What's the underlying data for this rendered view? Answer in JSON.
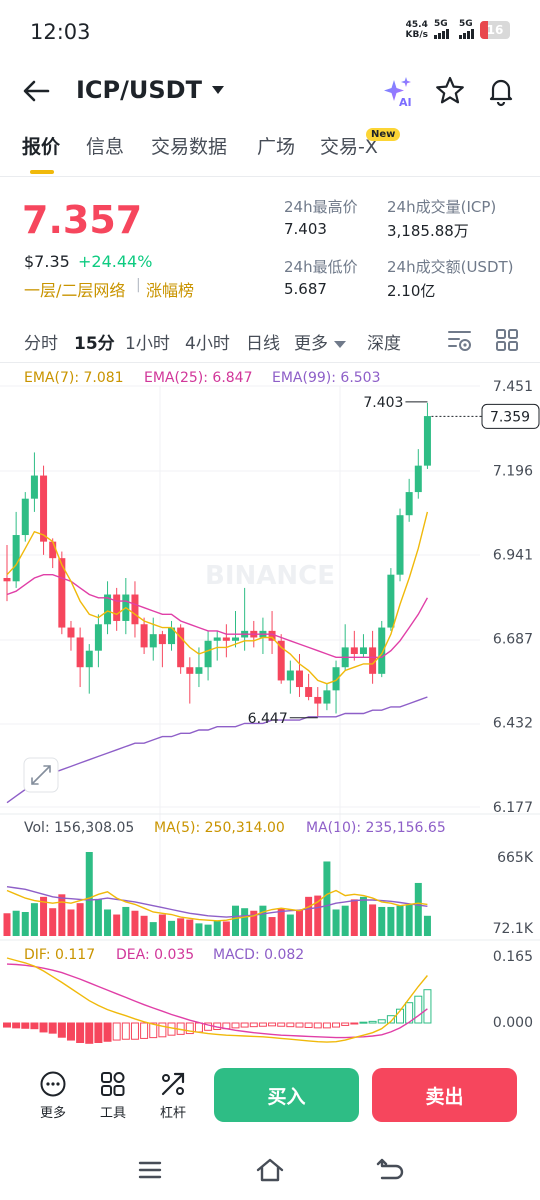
{
  "status": {
    "time": "12:03",
    "net_speed": "45.4",
    "net_unit": "KB/s",
    "sim1": "5G",
    "sim2": "5G",
    "battery": "16"
  },
  "header": {
    "title": "ICP/USDT",
    "ai_label": "AI"
  },
  "tabs": [
    {
      "label": "报价"
    },
    {
      "label": "信息"
    },
    {
      "label": "交易数据"
    },
    {
      "label": "广场"
    },
    {
      "label": "交易-X"
    }
  ],
  "new_badge": "New",
  "price": {
    "last": "7.357",
    "usd": "$7.35",
    "change": "+24.44%",
    "network_link": "一层/二层网络",
    "rank_link": "涨幅榜",
    "stats": [
      {
        "label": "24h最高价",
        "value": "7.403"
      },
      {
        "label": "24h成交量(ICP)",
        "value": "3,185.88万"
      },
      {
        "label": "24h最低价",
        "value": "5.687"
      },
      {
        "label": "24h成交额(USDT)",
        "value": "2.10亿"
      }
    ]
  },
  "intervals": {
    "items": [
      "分时",
      "15分",
      "1小时",
      "4小时",
      "日线"
    ],
    "more": "更多",
    "depth": "深度"
  },
  "indicators": {
    "ema7": "EMA(7): 7.081",
    "ema25": "EMA(25): 6.847",
    "ema99": "EMA(99): 6.503",
    "vol": "Vol: 156,308.05",
    "ma5": "MA(5): 250,314.00",
    "ma10": "MA(10): 235,156.65",
    "dif": "DIF: 0.117",
    "dea": "DEA: 0.035",
    "macd": "MACD: 0.082"
  },
  "colors": {
    "up": "#2ebd85",
    "down": "#f6465d",
    "ema7": "#f0b90b",
    "ema25": "#e03fa7",
    "ema99": "#8e5fc8"
  },
  "chart_data": {
    "type": "candlestick",
    "watermark": "BINANCE",
    "price_axis": [
      "7.451",
      "7.196",
      "6.941",
      "6.687",
      "6.432",
      "6.177"
    ],
    "ylim": [
      6.177,
      7.451
    ],
    "current_price": "7.359",
    "high_marker": "7.403",
    "low_marker": "6.447",
    "candles": [
      [
        6.87,
        6.86,
        6.97,
        6.8
      ],
      [
        6.86,
        7.0,
        7.07,
        6.84
      ],
      [
        7.0,
        7.11,
        7.13,
        6.98
      ],
      [
        7.11,
        7.18,
        7.25,
        7.07
      ],
      [
        7.18,
        6.98,
        7.21,
        6.94
      ],
      [
        6.98,
        6.93,
        6.99,
        6.9
      ],
      [
        6.93,
        6.72,
        6.95,
        6.7
      ],
      [
        6.72,
        6.69,
        6.74,
        6.65
      ],
      [
        6.69,
        6.6,
        6.72,
        6.54
      ],
      [
        6.6,
        6.65,
        6.67,
        6.52
      ],
      [
        6.65,
        6.73,
        6.76,
        6.6
      ],
      [
        6.73,
        6.82,
        6.86,
        6.7
      ],
      [
        6.82,
        6.74,
        6.84,
        6.71
      ],
      [
        6.74,
        6.82,
        6.87,
        6.7
      ],
      [
        6.82,
        6.73,
        6.86,
        6.69
      ],
      [
        6.73,
        6.66,
        6.75,
        6.64
      ],
      [
        6.66,
        6.7,
        6.75,
        6.62
      ],
      [
        6.7,
        6.67,
        6.71,
        6.6
      ],
      [
        6.67,
        6.72,
        6.74,
        6.65
      ],
      [
        6.72,
        6.6,
        6.73,
        6.58
      ],
      [
        6.6,
        6.58,
        6.63,
        6.49
      ],
      [
        6.58,
        6.6,
        6.66,
        6.54
      ],
      [
        6.6,
        6.68,
        6.71,
        6.56
      ],
      [
        6.68,
        6.69,
        6.71,
        6.62
      ],
      [
        6.69,
        6.68,
        6.73,
        6.63
      ],
      [
        6.68,
        6.69,
        6.77,
        6.66
      ],
      [
        6.69,
        6.71,
        6.84,
        6.65
      ],
      [
        6.71,
        6.69,
        6.74,
        6.66
      ],
      [
        6.69,
        6.71,
        6.75,
        6.64
      ],
      [
        6.71,
        6.68,
        6.77,
        6.64
      ],
      [
        6.68,
        6.56,
        6.7,
        6.55
      ],
      [
        6.56,
        6.59,
        6.62,
        6.52
      ],
      [
        6.59,
        6.54,
        6.64,
        6.51
      ],
      [
        6.54,
        6.51,
        6.58,
        6.5
      ],
      [
        6.51,
        6.49,
        6.54,
        6.45
      ],
      [
        6.49,
        6.53,
        6.55,
        6.47
      ],
      [
        6.53,
        6.6,
        6.62,
        6.46
      ],
      [
        6.6,
        6.66,
        6.73,
        6.59
      ],
      [
        6.66,
        6.64,
        6.71,
        6.62
      ],
      [
        6.64,
        6.66,
        6.7,
        6.63
      ],
      [
        6.66,
        6.58,
        6.71,
        6.55
      ],
      [
        6.58,
        6.72,
        6.74,
        6.57
      ],
      [
        6.72,
        6.88,
        6.9,
        6.71
      ],
      [
        6.88,
        7.06,
        7.08,
        6.86
      ],
      [
        7.06,
        7.13,
        7.17,
        7.04
      ],
      [
        7.13,
        7.21,
        7.26,
        7.11
      ],
      [
        7.21,
        7.36,
        7.4,
        7.2
      ]
    ],
    "ema7": [
      6.88,
      6.91,
      6.96,
      7.01,
      7.0,
      6.98,
      6.91,
      6.86,
      6.8,
      6.76,
      6.75,
      6.77,
      6.76,
      6.78,
      6.76,
      6.74,
      6.73,
      6.72,
      6.72,
      6.69,
      6.66,
      6.64,
      6.65,
      6.66,
      6.66,
      6.67,
      6.68,
      6.68,
      6.69,
      6.69,
      6.66,
      6.64,
      6.61,
      6.59,
      6.56,
      6.55,
      6.56,
      6.59,
      6.6,
      6.61,
      6.61,
      6.64,
      6.7,
      6.79,
      6.87,
      6.96,
      7.07
    ],
    "ema25": [
      6.82,
      6.83,
      6.85,
      6.87,
      6.88,
      6.88,
      6.87,
      6.86,
      6.84,
      6.82,
      6.81,
      6.81,
      6.8,
      6.8,
      6.79,
      6.78,
      6.77,
      6.76,
      6.76,
      6.74,
      6.73,
      6.72,
      6.71,
      6.71,
      6.7,
      6.7,
      6.7,
      6.7,
      6.7,
      6.7,
      6.69,
      6.68,
      6.67,
      6.66,
      6.65,
      6.64,
      6.63,
      6.63,
      6.63,
      6.63,
      6.63,
      6.63,
      6.65,
      6.68,
      6.72,
      6.76,
      6.81
    ],
    "ema99": [
      6.19,
      6.21,
      6.23,
      6.25,
      6.26,
      6.28,
      6.29,
      6.3,
      6.31,
      6.32,
      6.33,
      6.34,
      6.35,
      6.36,
      6.37,
      6.37,
      6.38,
      6.39,
      6.39,
      6.4,
      6.4,
      6.41,
      6.41,
      6.42,
      6.42,
      6.42,
      6.43,
      6.43,
      6.43,
      6.44,
      6.44,
      6.44,
      6.44,
      6.45,
      6.45,
      6.45,
      6.45,
      6.46,
      6.46,
      6.46,
      6.47,
      6.47,
      6.48,
      6.48,
      6.49,
      6.5,
      6.51
    ],
    "volume_axis": [
      "665K",
      "72.1K"
    ],
    "volume_max": 665000,
    "volume": [
      180000,
      200000,
      190000,
      260000,
      310000,
      220000,
      330000,
      210000,
      260000,
      665000,
      290000,
      210000,
      170000,
      230000,
      200000,
      160000,
      110000,
      170000,
      120000,
      140000,
      130000,
      100000,
      90000,
      120000,
      115000,
      240000,
      220000,
      200000,
      240000,
      150000,
      220000,
      170000,
      210000,
      310000,
      320000,
      590000,
      210000,
      240000,
      290000,
      310000,
      250000,
      230000,
      230000,
      240000,
      250000,
      420000,
      160000
    ],
    "ma5": [
      360000,
      330000,
      300000,
      280000,
      270000,
      260000,
      270000,
      260000,
      280000,
      300000,
      330000,
      350000,
      300000,
      270000,
      250000,
      220000,
      190000,
      180000,
      170000,
      150000,
      140000,
      130000,
      125000,
      120000,
      125000,
      140000,
      150000,
      160000,
      190000,
      210000,
      220000,
      210000,
      200000,
      230000,
      270000,
      330000,
      360000,
      320000,
      330000,
      320000,
      300000,
      270000,
      260000,
      240000,
      250000,
      260000,
      250000
    ],
    "ma10": [
      390000,
      380000,
      370000,
      350000,
      330000,
      310000,
      300000,
      295000,
      290000,
      285000,
      290000,
      300000,
      290000,
      280000,
      270000,
      255000,
      240000,
      225000,
      210000,
      195000,
      180000,
      170000,
      160000,
      155000,
      150000,
      155000,
      160000,
      165000,
      175000,
      185000,
      195000,
      200000,
      205000,
      215000,
      225000,
      240000,
      260000,
      270000,
      280000,
      285000,
      285000,
      280000,
      275000,
      265000,
      255000,
      245000,
      235000
    ],
    "macd_axis": [
      "0.165",
      "0.000"
    ],
    "macd_ylim": [
      -0.05,
      0.165
    ],
    "macd_hist": [
      -0.01,
      -0.012,
      -0.013,
      -0.014,
      -0.022,
      -0.025,
      -0.035,
      -0.042,
      -0.048,
      -0.05,
      -0.048,
      -0.045,
      -0.042,
      -0.04,
      -0.04,
      -0.038,
      -0.036,
      -0.034,
      -0.03,
      -0.028,
      -0.026,
      -0.022,
      -0.018,
      -0.016,
      -0.014,
      -0.012,
      -0.01,
      -0.009,
      -0.008,
      -0.007,
      -0.008,
      -0.009,
      -0.01,
      -0.011,
      -0.012,
      -0.012,
      -0.01,
      -0.006,
      -0.002,
      0.002,
      0.004,
      0.008,
      0.018,
      0.034,
      0.05,
      0.066,
      0.082
    ],
    "dif": [
      0.16,
      0.154,
      0.148,
      0.14,
      0.128,
      0.114,
      0.1,
      0.085,
      0.07,
      0.055,
      0.043,
      0.033,
      0.025,
      0.018,
      0.01,
      0.003,
      -0.003,
      -0.008,
      -0.012,
      -0.016,
      -0.02,
      -0.023,
      -0.026,
      -0.028,
      -0.03,
      -0.031,
      -0.032,
      -0.033,
      -0.034,
      -0.036,
      -0.038,
      -0.04,
      -0.042,
      -0.044,
      -0.046,
      -0.047,
      -0.046,
      -0.042,
      -0.036,
      -0.03,
      -0.024,
      -0.014,
      0.004,
      0.03,
      0.06,
      0.09,
      0.117
    ],
    "dea": [
      0.145,
      0.144,
      0.142,
      0.139,
      0.135,
      0.13,
      0.124,
      0.116,
      0.108,
      0.099,
      0.09,
      0.081,
      0.072,
      0.063,
      0.054,
      0.045,
      0.037,
      0.029,
      0.021,
      0.014,
      0.007,
      0.001,
      -0.005,
      -0.01,
      -0.014,
      -0.018,
      -0.021,
      -0.024,
      -0.026,
      -0.028,
      -0.03,
      -0.031,
      -0.032,
      -0.033,
      -0.034,
      -0.035,
      -0.036,
      -0.036,
      -0.035,
      -0.034,
      -0.032,
      -0.029,
      -0.022,
      -0.012,
      0.002,
      0.018,
      0.035
    ]
  },
  "bottom": {
    "more": "更多",
    "tools": "工具",
    "leverage": "杠杆",
    "buy": "买入",
    "sell": "卖出"
  }
}
